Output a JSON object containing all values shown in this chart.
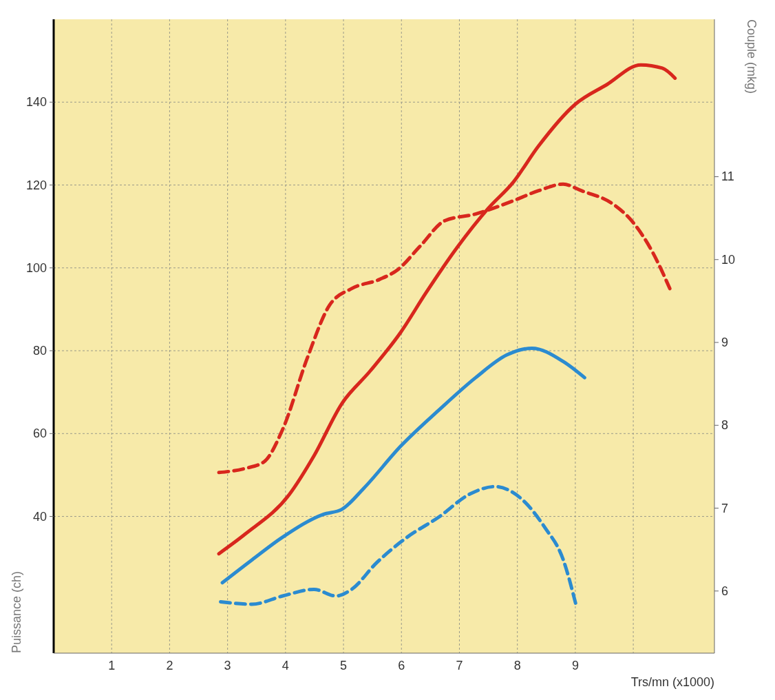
{
  "chart_data": {
    "type": "line",
    "xlabel": "Trs/mn (x1000)",
    "ylabel": "Puissance (ch)",
    "y2label": "Couple (mkg)",
    "xlim": [
      0,
      11.4
    ],
    "xticks": [
      1,
      2,
      3,
      4,
      5,
      6,
      7,
      8,
      9,
      {
        "value": 10,
        "label": null
      }
    ],
    "ylim": [
      7,
      160
    ],
    "yticks": [
      40,
      60,
      80,
      100,
      120,
      140
    ],
    "y2lim": [
      5.25,
      12.9
    ],
    "y2ticks": [
      6,
      7,
      8,
      9,
      10,
      11
    ],
    "grid": true,
    "line_style": "solid",
    "marker": "none",
    "series": [
      {
        "color": "#d8271d",
        "x": [
          2.85,
          3.31,
          4.06,
          4.49,
          4.97,
          5.46,
          5.99,
          6.42,
          6.96,
          7.5,
          7.93,
          8.36,
          9.0,
          9.54,
          10.13,
          10.5,
          10.72
        ],
        "values": [
          31,
          35.8,
          45.2,
          54.6,
          67.2,
          75.1,
          84.5,
          93.9,
          104.9,
          114.4,
          120.7,
          129.3,
          139.5,
          144.2,
          149,
          148.2,
          145.8
        ]
      },
      {
        "color": "#d8271d",
        "axis": "y2",
        "line_style": "dashed",
        "x": [
          2.85,
          3.31,
          3.63,
          3.95,
          4.38,
          4.76,
          5.14,
          5.62,
          5.94,
          6.32,
          6.75,
          7.28,
          7.93,
          8.36,
          8.79,
          9.11,
          9.65,
          9.97,
          10.34,
          10.63
        ],
        "values": [
          7.43,
          7.48,
          7.56,
          7.95,
          8.82,
          9.45,
          9.65,
          9.76,
          9.88,
          10.16,
          10.47,
          10.55,
          10.71,
          10.83,
          10.91,
          10.83,
          10.67,
          10.47,
          10.08,
          9.65
        ]
      },
      {
        "color": "#2b8bd0",
        "x": [
          2.91,
          3.42,
          3.95,
          4.65,
          4.97,
          5.35,
          5.99,
          6.64,
          7.28,
          7.82,
          8.25,
          8.79,
          9.16
        ],
        "values": [
          24,
          29.5,
          35,
          40.5,
          41.7,
          46.8,
          57,
          65.6,
          73.5,
          79,
          80.6,
          77.4,
          73.5
        ]
      },
      {
        "color": "#2b8bd0",
        "axis": "y2",
        "line_style": "dashed",
        "x": [
          2.88,
          3.42,
          3.95,
          4.49,
          4.87,
          5.14,
          5.57,
          6.1,
          6.64,
          7.18,
          7.61,
          8.04,
          8.47,
          8.79,
          9.02
        ],
        "values": [
          5.87,
          5.84,
          5.94,
          6.02,
          5.94,
          6.02,
          6.34,
          6.65,
          6.89,
          7.17,
          7.26,
          7.13,
          6.77,
          6.38,
          5.81
        ]
      }
    ]
  }
}
